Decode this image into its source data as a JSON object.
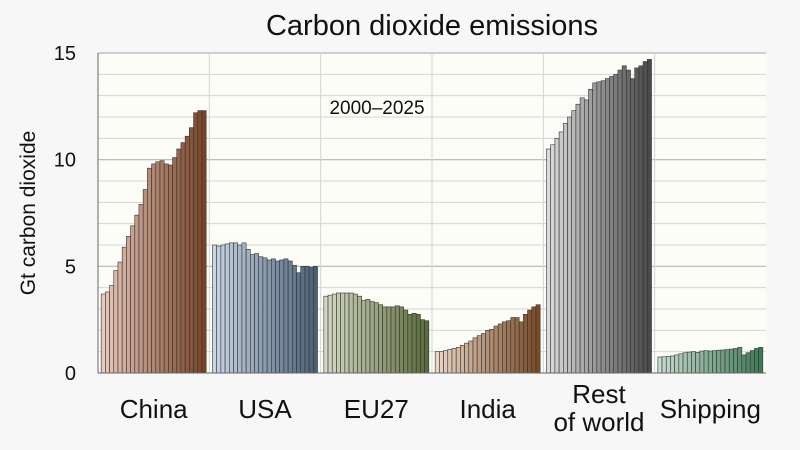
{
  "chart_data": {
    "type": "bar",
    "title": "Carbon dioxide emissions",
    "subtitle": "2000–2025",
    "ylabel": "Gt carbon dioxide",
    "xlabel": "",
    "ylim": [
      0,
      15
    ],
    "yticks": [
      0,
      5,
      10,
      15
    ],
    "grid": true,
    "years": [
      2000,
      2025
    ],
    "groups": [
      {
        "name": "China",
        "label_lines": [
          "China"
        ],
        "color_light": "#e8c9bb",
        "color_dark": "#7a4326",
        "values": [
          3.7,
          3.8,
          4.1,
          4.8,
          5.2,
          5.9,
          6.4,
          6.9,
          7.4,
          7.9,
          8.6,
          9.6,
          9.8,
          9.9,
          9.95,
          9.8,
          9.75,
          10.1,
          10.5,
          10.8,
          11.1,
          11.5,
          12.2,
          12.3,
          12.3
        ]
      },
      {
        "name": "USA",
        "label_lines": [
          "USA"
        ],
        "color_light": "#c9d6e3",
        "color_dark": "#4a6079",
        "values": [
          6.0,
          5.95,
          6.0,
          6.05,
          6.1,
          6.1,
          6.0,
          6.1,
          5.8,
          5.55,
          5.6,
          5.45,
          5.4,
          5.3,
          5.35,
          5.25,
          5.3,
          5.35,
          5.25,
          5.05,
          4.7,
          5.0,
          5.0,
          4.95,
          5.0
        ]
      },
      {
        "name": "EU27",
        "label_lines": [
          "EU27"
        ],
        "color_light": "#d5d9c4",
        "color_dark": "#5b6b3a",
        "values": [
          3.6,
          3.65,
          3.7,
          3.75,
          3.75,
          3.75,
          3.75,
          3.7,
          3.6,
          3.4,
          3.45,
          3.35,
          3.3,
          3.2,
          3.1,
          3.1,
          3.1,
          3.15,
          3.1,
          2.95,
          2.75,
          2.8,
          2.75,
          2.5,
          2.45
        ]
      },
      {
        "name": "India",
        "label_lines": [
          "India"
        ],
        "color_light": "#ead6c4",
        "color_dark": "#7a4b27",
        "values": [
          1.0,
          1.0,
          1.05,
          1.1,
          1.15,
          1.2,
          1.3,
          1.4,
          1.5,
          1.65,
          1.75,
          1.85,
          2.0,
          2.05,
          2.2,
          2.3,
          2.4,
          2.45,
          2.6,
          2.6,
          2.4,
          2.75,
          2.95,
          3.1,
          3.2
        ]
      },
      {
        "name": "Rest of world",
        "label_lines": [
          "Rest",
          "of world"
        ],
        "color_light": "#dcdcdc",
        "color_dark": "#4a4a4a",
        "values": [
          10.5,
          10.7,
          11.0,
          11.3,
          11.7,
          12.0,
          12.3,
          12.6,
          12.9,
          12.8,
          13.3,
          13.6,
          13.65,
          13.7,
          13.8,
          13.9,
          14.0,
          14.2,
          14.4,
          14.2,
          13.8,
          14.3,
          14.4,
          14.6,
          14.7
        ]
      },
      {
        "name": "Shipping",
        "label_lines": [
          "Shipping"
        ],
        "color_light": "#c6dccf",
        "color_dark": "#3f7a56",
        "values": [
          0.75,
          0.76,
          0.78,
          0.8,
          0.85,
          0.9,
          0.95,
          0.98,
          1.0,
          0.97,
          1.03,
          1.05,
          1.03,
          1.05,
          1.07,
          1.08,
          1.1,
          1.12,
          1.15,
          1.2,
          0.85,
          0.95,
          1.05,
          1.15,
          1.2
        ]
      }
    ]
  }
}
